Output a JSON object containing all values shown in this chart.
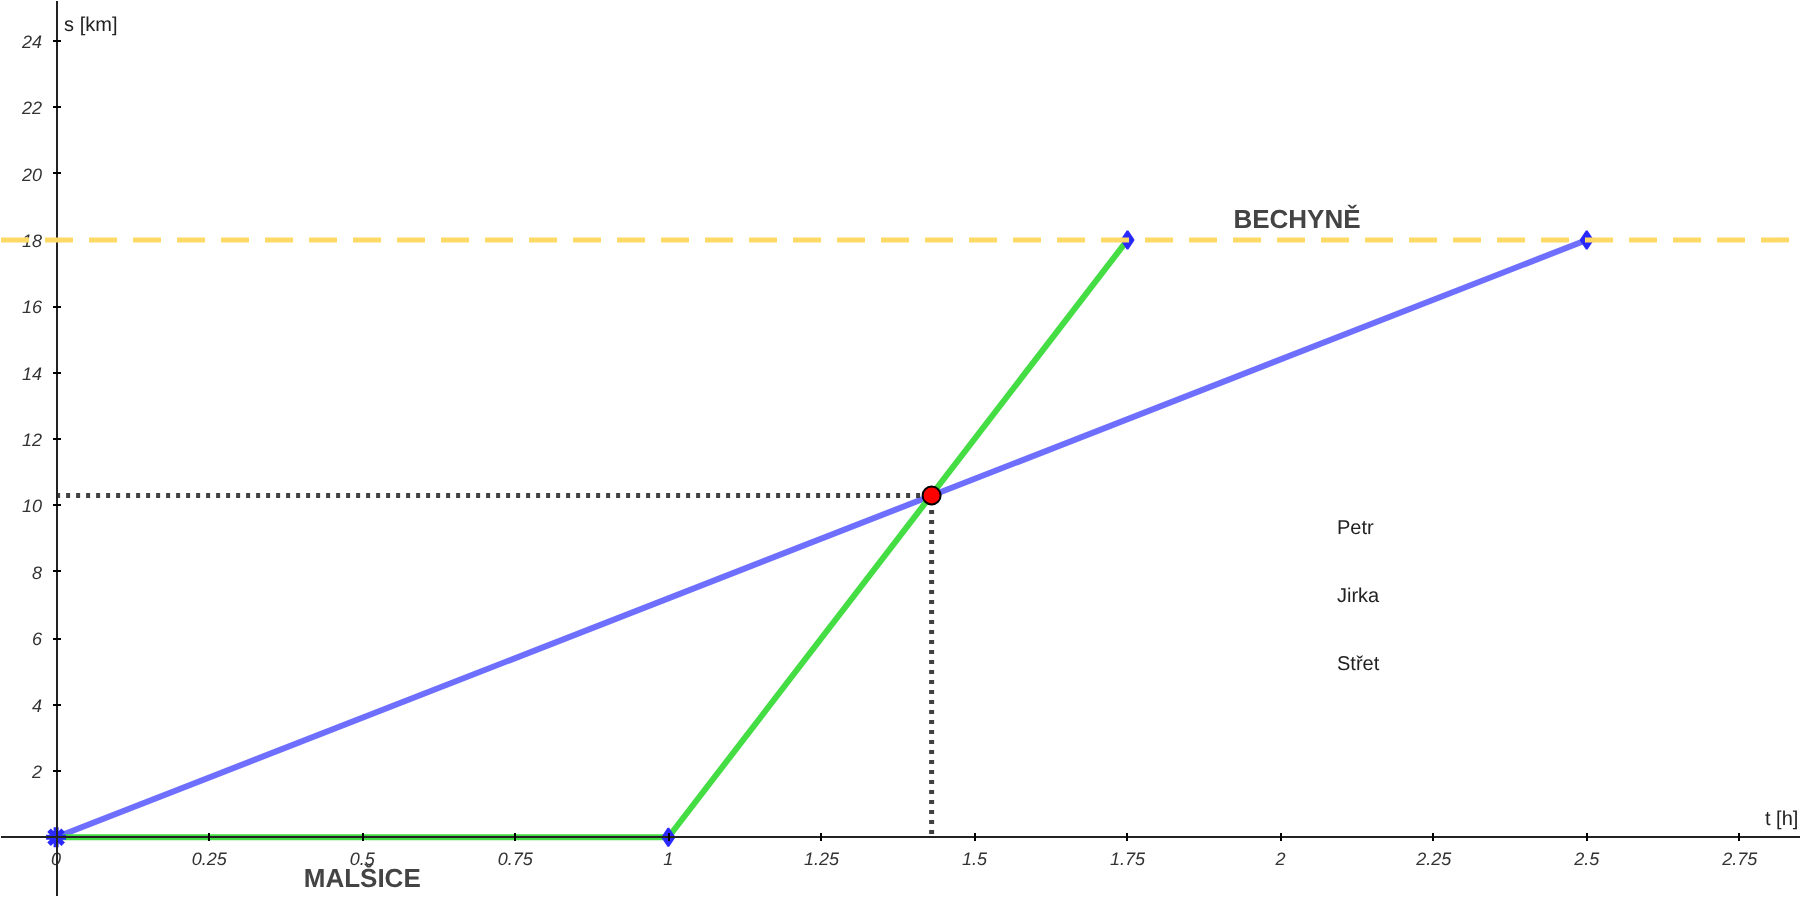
{
  "chart_data": {
    "type": "line",
    "xlabel": "t [h]",
    "ylabel": "s [km]",
    "xlim": [
      -0.09,
      2.85
    ],
    "ylim": [
      -1.8,
      25.2
    ],
    "xticks": [
      0,
      0.25,
      0.5,
      0.75,
      1,
      1.25,
      1.5,
      1.75,
      2,
      2.25,
      2.5,
      2.75
    ],
    "yticks": [
      2,
      4,
      6,
      8,
      10,
      12,
      14,
      16,
      18,
      20,
      22,
      24
    ],
    "grid": false,
    "series": [
      {
        "x": [
          0,
          2.5
        ],
        "values": [
          0,
          18
        ],
        "color": "#6e6eff"
      },
      {
        "x": [
          0,
          1,
          1.75
        ],
        "values": [
          0,
          0,
          18
        ],
        "color": "#44dd44"
      },
      {
        "x": [
          0,
          1.43,
          1.43
        ],
        "values": [
          10.3,
          10.3,
          0
        ],
        "color": "#404040",
        "line_style": "dotted"
      },
      {
        "type": "scatter",
        "x": [
          2.5,
          1.75,
          1
        ],
        "values": [
          18,
          18,
          0
        ],
        "color": "#2a2aff",
        "marker": "diamond"
      },
      {
        "type": "scatter",
        "x": [
          0
        ],
        "values": [
          0
        ],
        "color": "#2a2aff",
        "marker": "cross"
      },
      {
        "type": "scatter",
        "x": [
          1.43
        ],
        "values": [
          10.3
        ],
        "color": "#ff0000",
        "marker": "circle"
      }
    ],
    "ref_lines": [
      {
        "axis": "y",
        "value": 18,
        "label": "BECHYNĚ",
        "color": "#ffd966",
        "line_style": "dashed"
      }
    ],
    "annotations": [
      {
        "text": "MALŠICE",
        "x": 0.5,
        "y": 0
      },
      "Petr",
      "Jirka",
      "Střet"
    ]
  }
}
